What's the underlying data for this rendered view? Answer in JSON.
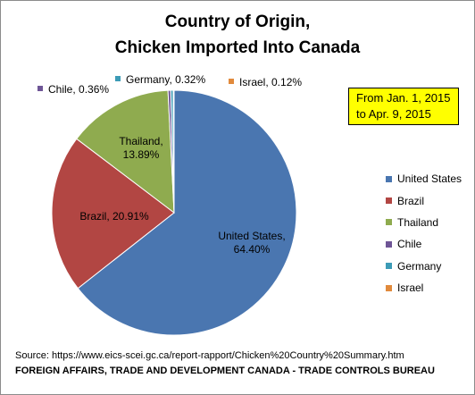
{
  "chart_data": {
    "type": "pie",
    "title_line1": "Country of Origin,",
    "title_line2": "Chicken Imported Into Canada",
    "note_line1": "From Jan. 1, 2015",
    "note_line2": "to Apr. 9, 2015",
    "legend_position": "right",
    "slices": [
      {
        "name": "United States",
        "value": 64.4,
        "label_line1": "United States,",
        "label_line2": "64.40%",
        "color": "#4a76b0"
      },
      {
        "name": "Brazil",
        "value": 20.91,
        "label_line1": "Brazil, 20.91%",
        "label_line2": "",
        "color": "#b24643"
      },
      {
        "name": "Thailand",
        "value": 13.89,
        "label_line1": "Thailand,",
        "label_line2": "13.89%",
        "color": "#8fab4f"
      },
      {
        "name": "Chile",
        "value": 0.36,
        "label_line1": "Chile, 0.36%",
        "label_line2": "",
        "color": "#6e5596"
      },
      {
        "name": "Germany",
        "value": 0.32,
        "label_line1": "Germany, 0.32%",
        "label_line2": "",
        "color": "#3c9bb6"
      },
      {
        "name": "Israel",
        "value": 0.12,
        "label_line1": "Israel, 0.12%",
        "label_line2": "",
        "color": "#e18a3c"
      }
    ]
  },
  "source_text": "Source:  https://www.eics-scei.gc.ca/report-rapport/Chicken%20Country%20Summary.htm",
  "footer_text": "FOREIGN AFFAIRS, TRADE AND DEVELOPMENT CANADA - TRADE CONTROLS BUREAU"
}
